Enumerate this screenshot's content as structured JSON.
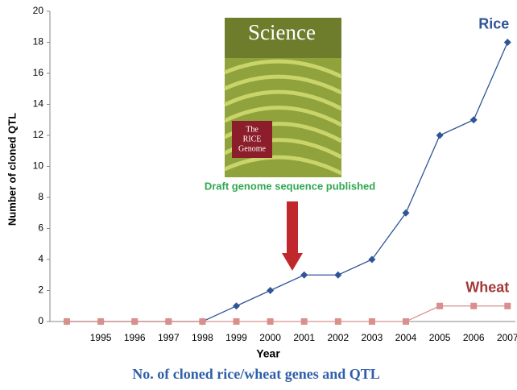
{
  "chart_data": {
    "type": "line",
    "categories": [
      null,
      "1995",
      "1996",
      "1997",
      "1998",
      "1999",
      "2000",
      "2001",
      "2002",
      "2003",
      "2004",
      "2005",
      "2006",
      "2007"
    ],
    "series": [
      {
        "name": "Rice",
        "color": "#2f5597",
        "label_color": "#2f5597",
        "marker": "diamond",
        "values": [
          0,
          0,
          0,
          0,
          0,
          1,
          2,
          3,
          3,
          4,
          7,
          12,
          13,
          18
        ]
      },
      {
        "name": "Wheat",
        "color": "#d9908c",
        "label_color": "#a33a36",
        "marker": "square",
        "values": [
          0,
          0,
          0,
          0,
          0,
          0,
          0,
          0,
          0,
          0,
          0,
          1,
          1,
          1
        ]
      }
    ],
    "ylim": [
      0,
      20
    ],
    "yticks": [
      0,
      2,
      4,
      6,
      8,
      10,
      12,
      14,
      16,
      18,
      20
    ],
    "x_label": "Year",
    "y_label": "Number of cloned QTL",
    "annotation": "Draft genome sequence published",
    "cover": {
      "title": "Science",
      "caption": [
        "The",
        "RICE",
        "Genome"
      ]
    },
    "caption": "No. of cloned rice/wheat genes and QTL",
    "grid": false
  }
}
